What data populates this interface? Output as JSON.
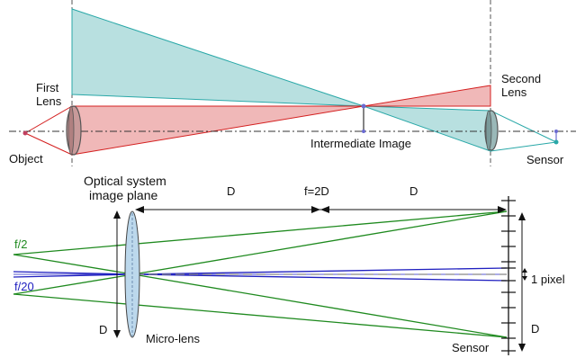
{
  "top_panel": {
    "first_lens_label": [
      "First",
      "Lens"
    ],
    "second_lens_label": [
      "Second",
      "Lens"
    ],
    "object_label": "Object",
    "intermediate_image_label": "Intermediate Image",
    "sensor_label": "Sensor"
  },
  "bottom_panel": {
    "optical_plane_label": [
      "Optical system",
      "image plane"
    ],
    "distance_label_left": "D",
    "focal_label": "f=2D",
    "distance_label_right": "D",
    "aperture_f2_label": "f/2",
    "aperture_f20_label": "f/20",
    "lens_diameter_label": "D",
    "microlens_label": "Micro-lens",
    "pixel_label": "1 pixel",
    "sensor_height_label": "D",
    "sensor_label": "Sensor"
  },
  "colors": {
    "teal_fill": "#b8e0e0",
    "teal_stroke": "#2aa8a8",
    "red_fill": "#f0b8b8",
    "red_stroke": "#d42020",
    "green": "#1f8a1f",
    "blue": "#2020c0",
    "lens_fill": "#bcd8ec",
    "lens_gray": "#9a9a9a"
  }
}
